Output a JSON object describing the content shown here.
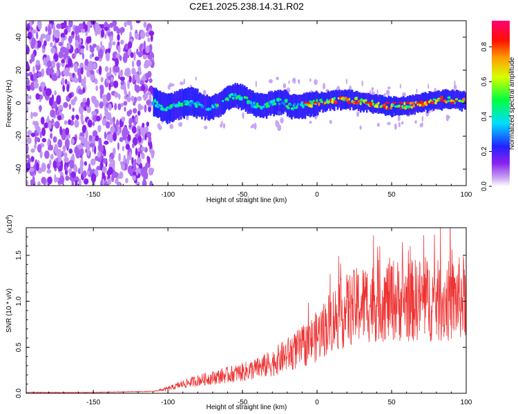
{
  "title": "C2E1.2025.238.14.31.R02",
  "chart_data": [
    {
      "type": "heatmap",
      "title": "C2E1.2025.238.14.31.R02",
      "xlabel": "Height of straight line (km)",
      "ylabel": "Frequency (Hz)",
      "xlim": [
        -195,
        100
      ],
      "ylim": [
        -50,
        50
      ],
      "xticks": [
        -150,
        -100,
        -50,
        0,
        50,
        100
      ],
      "yticks": [
        -40,
        -20,
        0,
        20,
        40
      ],
      "xtick_labels": [
        "-150",
        "-100",
        "-50",
        "0",
        "50",
        "100"
      ],
      "ytick_labels": [
        "-40",
        "-20",
        "0",
        "20",
        "40"
      ],
      "colorbar": {
        "label": "Normalized spectral amplitude",
        "range": [
          0,
          0.95
        ],
        "ticks": [
          0.0,
          0.2,
          0.4,
          0.6,
          0.8
        ],
        "tick_labels": [
          "0.0",
          "0.2",
          "0.4",
          "0.6",
          "0.8"
        ]
      },
      "regions": [
        {
          "name": "noise",
          "x_range": [
            -195,
            -110
          ],
          "freq_range": [
            -50,
            50
          ],
          "amplitude": 0.12
        },
        {
          "name": "signal-band",
          "x_range": [
            -110,
            100
          ],
          "center_freq": 0,
          "half_width": 5,
          "amplitude_range": [
            0.2,
            0.95
          ]
        }
      ]
    },
    {
      "type": "line",
      "xlabel": "Height of straight line (km)",
      "ylabel": "SNR (10 * v/v)",
      "scale_label": "(x10",
      "scale_exp": "4",
      "xlim": [
        -195,
        100
      ],
      "ylim": [
        0,
        1.8
      ],
      "xticks": [
        -150,
        -100,
        -50,
        0,
        50,
        100
      ],
      "yticks": [
        0.0,
        0.5,
        1.0,
        1.5
      ],
      "xtick_labels": [
        "-150",
        "-100",
        "-50",
        "0",
        "50",
        "100"
      ],
      "ytick_labels": [
        "0.0",
        "0.5",
        "1.0",
        "1.5"
      ],
      "color": "#ee3333",
      "series": [
        {
          "name": "SNR",
          "x": [
            -195,
            -150,
            -110,
            -100,
            -90,
            -80,
            -70,
            -60,
            -50,
            -40,
            -30,
            -20,
            -10,
            0,
            10,
            20,
            30,
            40,
            50,
            60,
            70,
            80,
            90,
            100
          ],
          "values": [
            0.01,
            0.01,
            0.02,
            0.05,
            0.1,
            0.14,
            0.17,
            0.2,
            0.23,
            0.27,
            0.33,
            0.42,
            0.5,
            0.62,
            0.8,
            0.9,
            0.97,
            1.0,
            1.02,
            1.0,
            1.02,
            1.0,
            1.0,
            1.05
          ]
        }
      ]
    }
  ]
}
